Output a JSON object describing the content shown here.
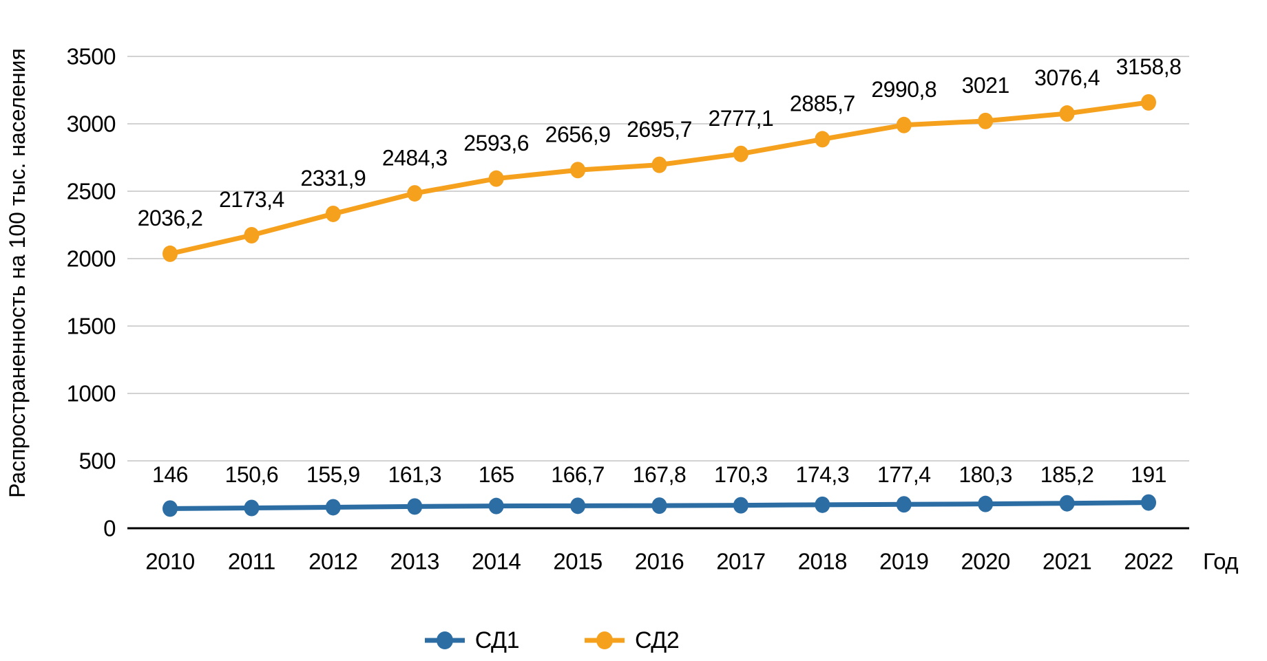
{
  "chart_data": {
    "type": "line",
    "title": "",
    "ylabel": "Распространенность на 100 тыс. населения",
    "xlabel": "Год",
    "x": [
      "2010",
      "2011",
      "2012",
      "2013",
      "2014",
      "2015",
      "2016",
      "2017",
      "2018",
      "2019",
      "2020",
      "2021",
      "2022"
    ],
    "ylim": [
      0,
      3500
    ],
    "yticks": [
      0,
      500,
      1000,
      1500,
      2000,
      2500,
      3000,
      3500
    ],
    "grid": true,
    "gridline_color": "#d2d2d2",
    "axis_color": "#000000",
    "legend_position": "bottom-center",
    "series": [
      {
        "id": "sd1",
        "name": "СД1",
        "color": "#2c6da4",
        "values": [
          146,
          150.6,
          155.9,
          161.3,
          165,
          166.7,
          167.8,
          170.3,
          174.3,
          177.4,
          180.3,
          185.2,
          191
        ],
        "labels": [
          "146",
          "150,6",
          "155,9",
          "161,3",
          "165",
          "166,7",
          "167,8",
          "170,3",
          "174,3",
          "177,4",
          "180,3",
          "185,2",
          "191"
        ],
        "label_placement": "row"
      },
      {
        "id": "sd2",
        "name": "СД2",
        "color": "#f6a11e",
        "values": [
          2036.2,
          2173.4,
          2331.9,
          2484.3,
          2593.6,
          2656.9,
          2695.7,
          2777.1,
          2885.7,
          2990.8,
          3021,
          3076.4,
          3158.8
        ],
        "labels": [
          "2036,2",
          "2173,4",
          "2331,9",
          "2484,3",
          "2593,6",
          "2656,9",
          "2695,7",
          "2777,1",
          "2885,7",
          "2990,8",
          "3021",
          "3076,4",
          "3158,8"
        ],
        "label_placement": "above"
      }
    ]
  }
}
